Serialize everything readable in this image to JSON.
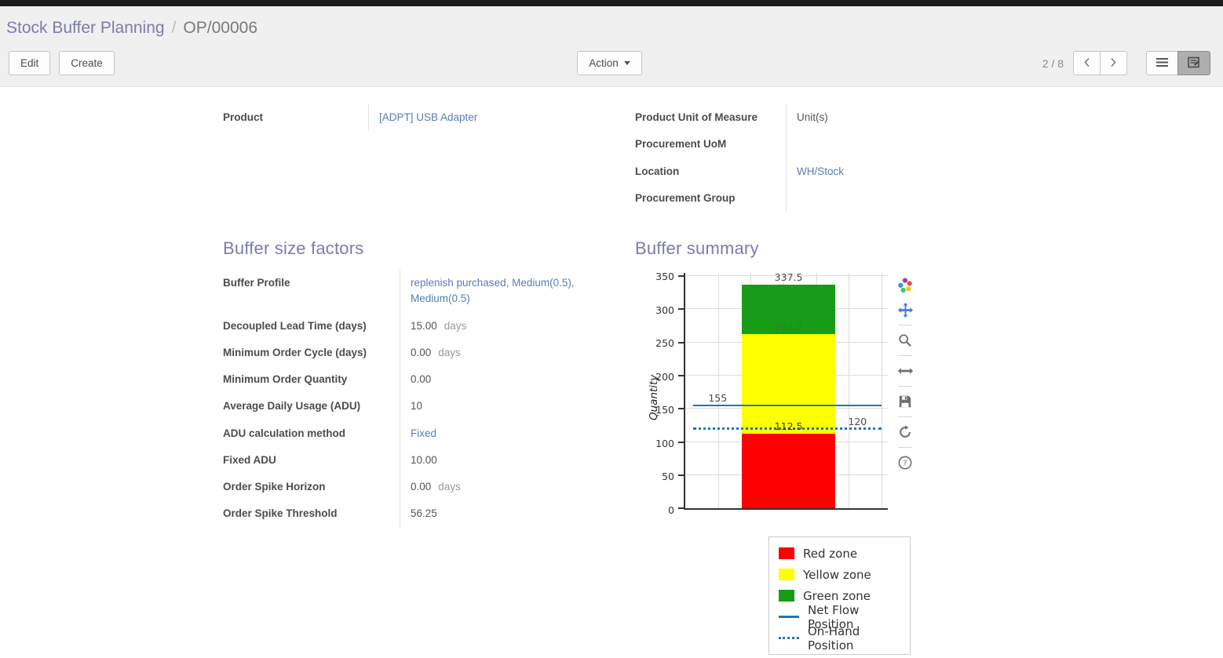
{
  "breadcrumb": {
    "root": "Stock Buffer Planning",
    "separator": "/",
    "current": "OP/00006"
  },
  "toolbar": {
    "edit_label": "Edit",
    "create_label": "Create",
    "action_label": "Action",
    "pager": "2 / 8"
  },
  "form": {
    "main_fields_left": [
      {
        "label": "Product",
        "value": "[ADPT] USB Adapter",
        "link": true
      }
    ],
    "main_fields_right": [
      {
        "label": "Product Unit of Measure",
        "value": "Unit(s)",
        "link": false
      },
      {
        "label": "Procurement UoM",
        "value": "",
        "link": false
      },
      {
        "label": "Location",
        "value": "WH/Stock",
        "link": true
      },
      {
        "label": "Procurement Group",
        "value": "",
        "link": false
      }
    ],
    "buffer_factors": {
      "title": "Buffer size factors",
      "fields": [
        {
          "label": "Buffer Profile",
          "value": "replenish purchased, Medium(0.5), Medium(0.5)",
          "link": true
        },
        {
          "label": "Decoupled Lead Time (days)",
          "value": "15.00",
          "suffix": "days"
        },
        {
          "label": "Minimum Order Cycle (days)",
          "value": "0.00",
          "suffix": "days"
        },
        {
          "label": "Minimum Order Quantity",
          "value": "0.00"
        },
        {
          "label": "Average Daily Usage (ADU)",
          "value": "10"
        },
        {
          "label": "ADU calculation method",
          "value": "Fixed",
          "link": true
        },
        {
          "label": "Fixed ADU",
          "value": "10.00"
        },
        {
          "label": "Order Spike Horizon",
          "value": "0.00",
          "suffix": "days"
        },
        {
          "label": "Order Spike Threshold",
          "value": "56.25"
        }
      ]
    },
    "buffer_summary": {
      "title": "Buffer summary"
    }
  },
  "chart_data": {
    "type": "bar",
    "title": "",
    "xlabel": "",
    "ylabel": "Quantity",
    "ylim": [
      0,
      355
    ],
    "yticks": [
      0,
      50,
      100,
      150,
      200,
      250,
      300,
      350
    ],
    "grid": true,
    "zones": [
      {
        "name": "Red zone",
        "from": 0,
        "to": 112.5,
        "color": "#fe0000"
      },
      {
        "name": "Yellow zone",
        "from": 112.5,
        "to": 262.5,
        "color": "#ffff00"
      },
      {
        "name": "Green zone",
        "from": 262.5,
        "to": 337.5,
        "color": "#179c17"
      }
    ],
    "lines": [
      {
        "name": "Net Flow Position",
        "value": 155,
        "style": "solid",
        "color": "#1f77b4"
      },
      {
        "name": "On-Hand Position",
        "value": 120,
        "style": "dotted",
        "color": "#1f77b4"
      }
    ],
    "annotations": [
      {
        "text": "337.5",
        "at": 337.5,
        "anchor": "center",
        "color": "#4c4c4c"
      },
      {
        "text": "262.5",
        "at": 262.5,
        "anchor": "center",
        "color": "#2e7d32"
      },
      {
        "text": "112.5",
        "at": 112.5,
        "anchor": "center",
        "color": "#3a3a3a"
      },
      {
        "text": "155",
        "at": 155,
        "anchor": "left",
        "color": "#4c4c4c"
      },
      {
        "text": "120",
        "at": 120,
        "anchor": "right",
        "color": "#4c4c4c"
      }
    ],
    "legend": [
      "Red zone",
      "Yellow zone",
      "Green zone",
      "Net Flow Position",
      "On-Hand Position"
    ],
    "legend_position": "bottom-right"
  },
  "chart_toolbar": {
    "icons": [
      "plotly-logo-icon",
      "pan-icon",
      "zoom-icon",
      "autoscale-icon",
      "save-icon",
      "reset-icon",
      "help-icon"
    ]
  }
}
